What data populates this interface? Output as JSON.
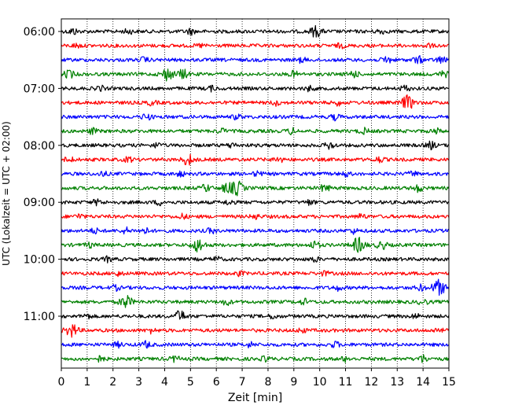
{
  "chart_data": {
    "type": "line",
    "title": "",
    "xlabel": "Zeit  [min]",
    "ylabel": "UTC (Lokalzeit = UTC + 02:00)",
    "xlim": [
      0,
      15
    ],
    "x_ticks": [
      "0",
      "1",
      "2",
      "3",
      "4",
      "5",
      "6",
      "7",
      "8",
      "9",
      "10",
      "11",
      "12",
      "13",
      "14",
      "15"
    ],
    "y_ticks": [
      "06:00",
      "07:00",
      "08:00",
      "09:00",
      "10:00",
      "11:00"
    ],
    "vertical_grid": "dotted",
    "colors": [
      "#000000",
      "#ff0000",
      "#0000ff",
      "#008000"
    ],
    "traces": [
      {
        "start": "06:00",
        "color": "#000000",
        "events": [
          [
            0.45,
            0.4
          ],
          [
            2.6,
            0.3
          ],
          [
            5.0,
            0.35
          ],
          [
            9.85,
            0.7
          ],
          [
            12.35,
            0.3
          ]
        ]
      },
      {
        "start": "06:15",
        "color": "#ff0000",
        "events": [
          [
            0.6,
            0.25
          ],
          [
            5.4,
            0.2
          ],
          [
            10.8,
            0.25
          ],
          [
            14.2,
            0.25
          ]
        ]
      },
      {
        "start": "06:30",
        "color": "#0000ff",
        "events": [
          [
            3.2,
            0.3
          ],
          [
            9.3,
            0.3
          ],
          [
            12.6,
            0.45
          ],
          [
            13.8,
            0.45
          ],
          [
            14.7,
            0.4
          ]
        ]
      },
      {
        "start": "06:45",
        "color": "#008000",
        "events": [
          [
            0.3,
            0.5
          ],
          [
            4.1,
            0.8
          ],
          [
            4.7,
            0.6
          ],
          [
            9.0,
            0.35
          ],
          [
            11.3,
            0.45
          ],
          [
            14.8,
            0.35
          ]
        ]
      },
      {
        "start": "07:00",
        "color": "#000000",
        "events": [
          [
            1.5,
            0.3
          ],
          [
            5.8,
            0.3
          ],
          [
            9.6,
            0.3
          ],
          [
            13.3,
            0.35
          ]
        ]
      },
      {
        "start": "07:15",
        "color": "#ff0000",
        "events": [
          [
            3.5,
            0.3
          ],
          [
            8.3,
            0.3
          ],
          [
            10.7,
            0.3
          ],
          [
            13.4,
            0.9
          ]
        ]
      },
      {
        "start": "07:30",
        "color": "#0000ff",
        "events": [
          [
            3.3,
            0.4
          ],
          [
            6.8,
            0.3
          ],
          [
            10.6,
            0.35
          ]
        ]
      },
      {
        "start": "07:45",
        "color": "#008000",
        "events": [
          [
            1.2,
            0.35
          ],
          [
            6.2,
            0.3
          ],
          [
            8.9,
            0.35
          ],
          [
            11.7,
            0.35
          ],
          [
            14.5,
            0.3
          ]
        ]
      },
      {
        "start": "08:00",
        "color": "#000000",
        "events": [
          [
            3.7,
            0.3
          ],
          [
            6.6,
            0.3
          ],
          [
            10.4,
            0.45
          ],
          [
            14.3,
            0.45
          ]
        ]
      },
      {
        "start": "08:15",
        "color": "#ff0000",
        "events": [
          [
            0.3,
            0.35
          ],
          [
            2.6,
            0.3
          ],
          [
            4.9,
            0.7
          ],
          [
            8.4,
            0.35
          ],
          [
            12.3,
            0.35
          ]
        ]
      },
      {
        "start": "08:30",
        "color": "#0000ff",
        "events": [
          [
            1.6,
            0.3
          ],
          [
            4.6,
            0.3
          ],
          [
            7.6,
            0.3
          ],
          [
            11.0,
            0.3
          ],
          [
            13.6,
            0.3
          ]
        ]
      },
      {
        "start": "08:45",
        "color": "#008000",
        "events": [
          [
            5.6,
            0.45
          ],
          [
            6.4,
            0.55
          ],
          [
            6.8,
            0.9
          ],
          [
            10.2,
            0.45
          ],
          [
            13.8,
            0.45
          ]
        ]
      },
      {
        "start": "09:00",
        "color": "#000000",
        "events": [
          [
            1.4,
            0.35
          ],
          [
            3.8,
            0.3
          ],
          [
            6.5,
            0.3
          ],
          [
            9.6,
            0.3
          ]
        ]
      },
      {
        "start": "09:15",
        "color": "#ff0000",
        "events": [
          [
            0.7,
            0.3
          ],
          [
            4.7,
            0.3
          ],
          [
            7.5,
            0.3
          ],
          [
            11.6,
            0.3
          ]
        ]
      },
      {
        "start": "09:30",
        "color": "#0000ff",
        "events": [
          [
            1.3,
            0.3
          ],
          [
            2.5,
            0.35
          ],
          [
            3.2,
            0.4
          ],
          [
            5.8,
            0.3
          ],
          [
            11.3,
            0.3
          ]
        ]
      },
      {
        "start": "09:45",
        "color": "#008000",
        "events": [
          [
            1.1,
            0.3
          ],
          [
            5.3,
            0.85
          ],
          [
            9.8,
            0.45
          ],
          [
            11.5,
            0.95
          ],
          [
            12.4,
            0.5
          ]
        ]
      },
      {
        "start": "10:00",
        "color": "#000000",
        "events": [
          [
            1.8,
            0.3
          ],
          [
            6.0,
            0.3
          ],
          [
            9.8,
            0.3
          ]
        ]
      },
      {
        "start": "10:15",
        "color": "#ff0000",
        "events": [
          [
            2.2,
            0.25
          ],
          [
            6.9,
            0.25
          ],
          [
            10.2,
            0.25
          ]
        ]
      },
      {
        "start": "10:30",
        "color": "#0000ff",
        "events": [
          [
            2.1,
            0.3
          ],
          [
            10.7,
            0.3
          ],
          [
            13.9,
            0.35
          ],
          [
            14.6,
            1.0
          ]
        ]
      },
      {
        "start": "10:45",
        "color": "#008000",
        "events": [
          [
            2.5,
            0.8
          ],
          [
            6.4,
            0.35
          ],
          [
            9.4,
            0.35
          ],
          [
            14.0,
            0.35
          ]
        ]
      },
      {
        "start": "11:00",
        "color": "#000000",
        "events": [
          [
            1.0,
            0.3
          ],
          [
            4.6,
            0.7
          ],
          [
            8.2,
            0.3
          ],
          [
            13.7,
            0.3
          ]
        ]
      },
      {
        "start": "11:15",
        "color": "#ff0000",
        "events": [
          [
            0.4,
            0.85
          ],
          [
            3.5,
            0.3
          ],
          [
            9.3,
            0.3
          ],
          [
            14.6,
            0.3
          ]
        ]
      },
      {
        "start": "11:30",
        "color": "#0000ff",
        "events": [
          [
            2.2,
            0.3
          ],
          [
            3.3,
            0.4
          ],
          [
            7.3,
            0.3
          ],
          [
            10.6,
            0.35
          ]
        ]
      },
      {
        "start": "11:45",
        "color": "#008000",
        "events": [
          [
            1.5,
            0.35
          ],
          [
            4.4,
            0.35
          ],
          [
            7.9,
            0.3
          ],
          [
            11.0,
            0.3
          ],
          [
            14.0,
            0.45
          ]
        ]
      }
    ]
  }
}
